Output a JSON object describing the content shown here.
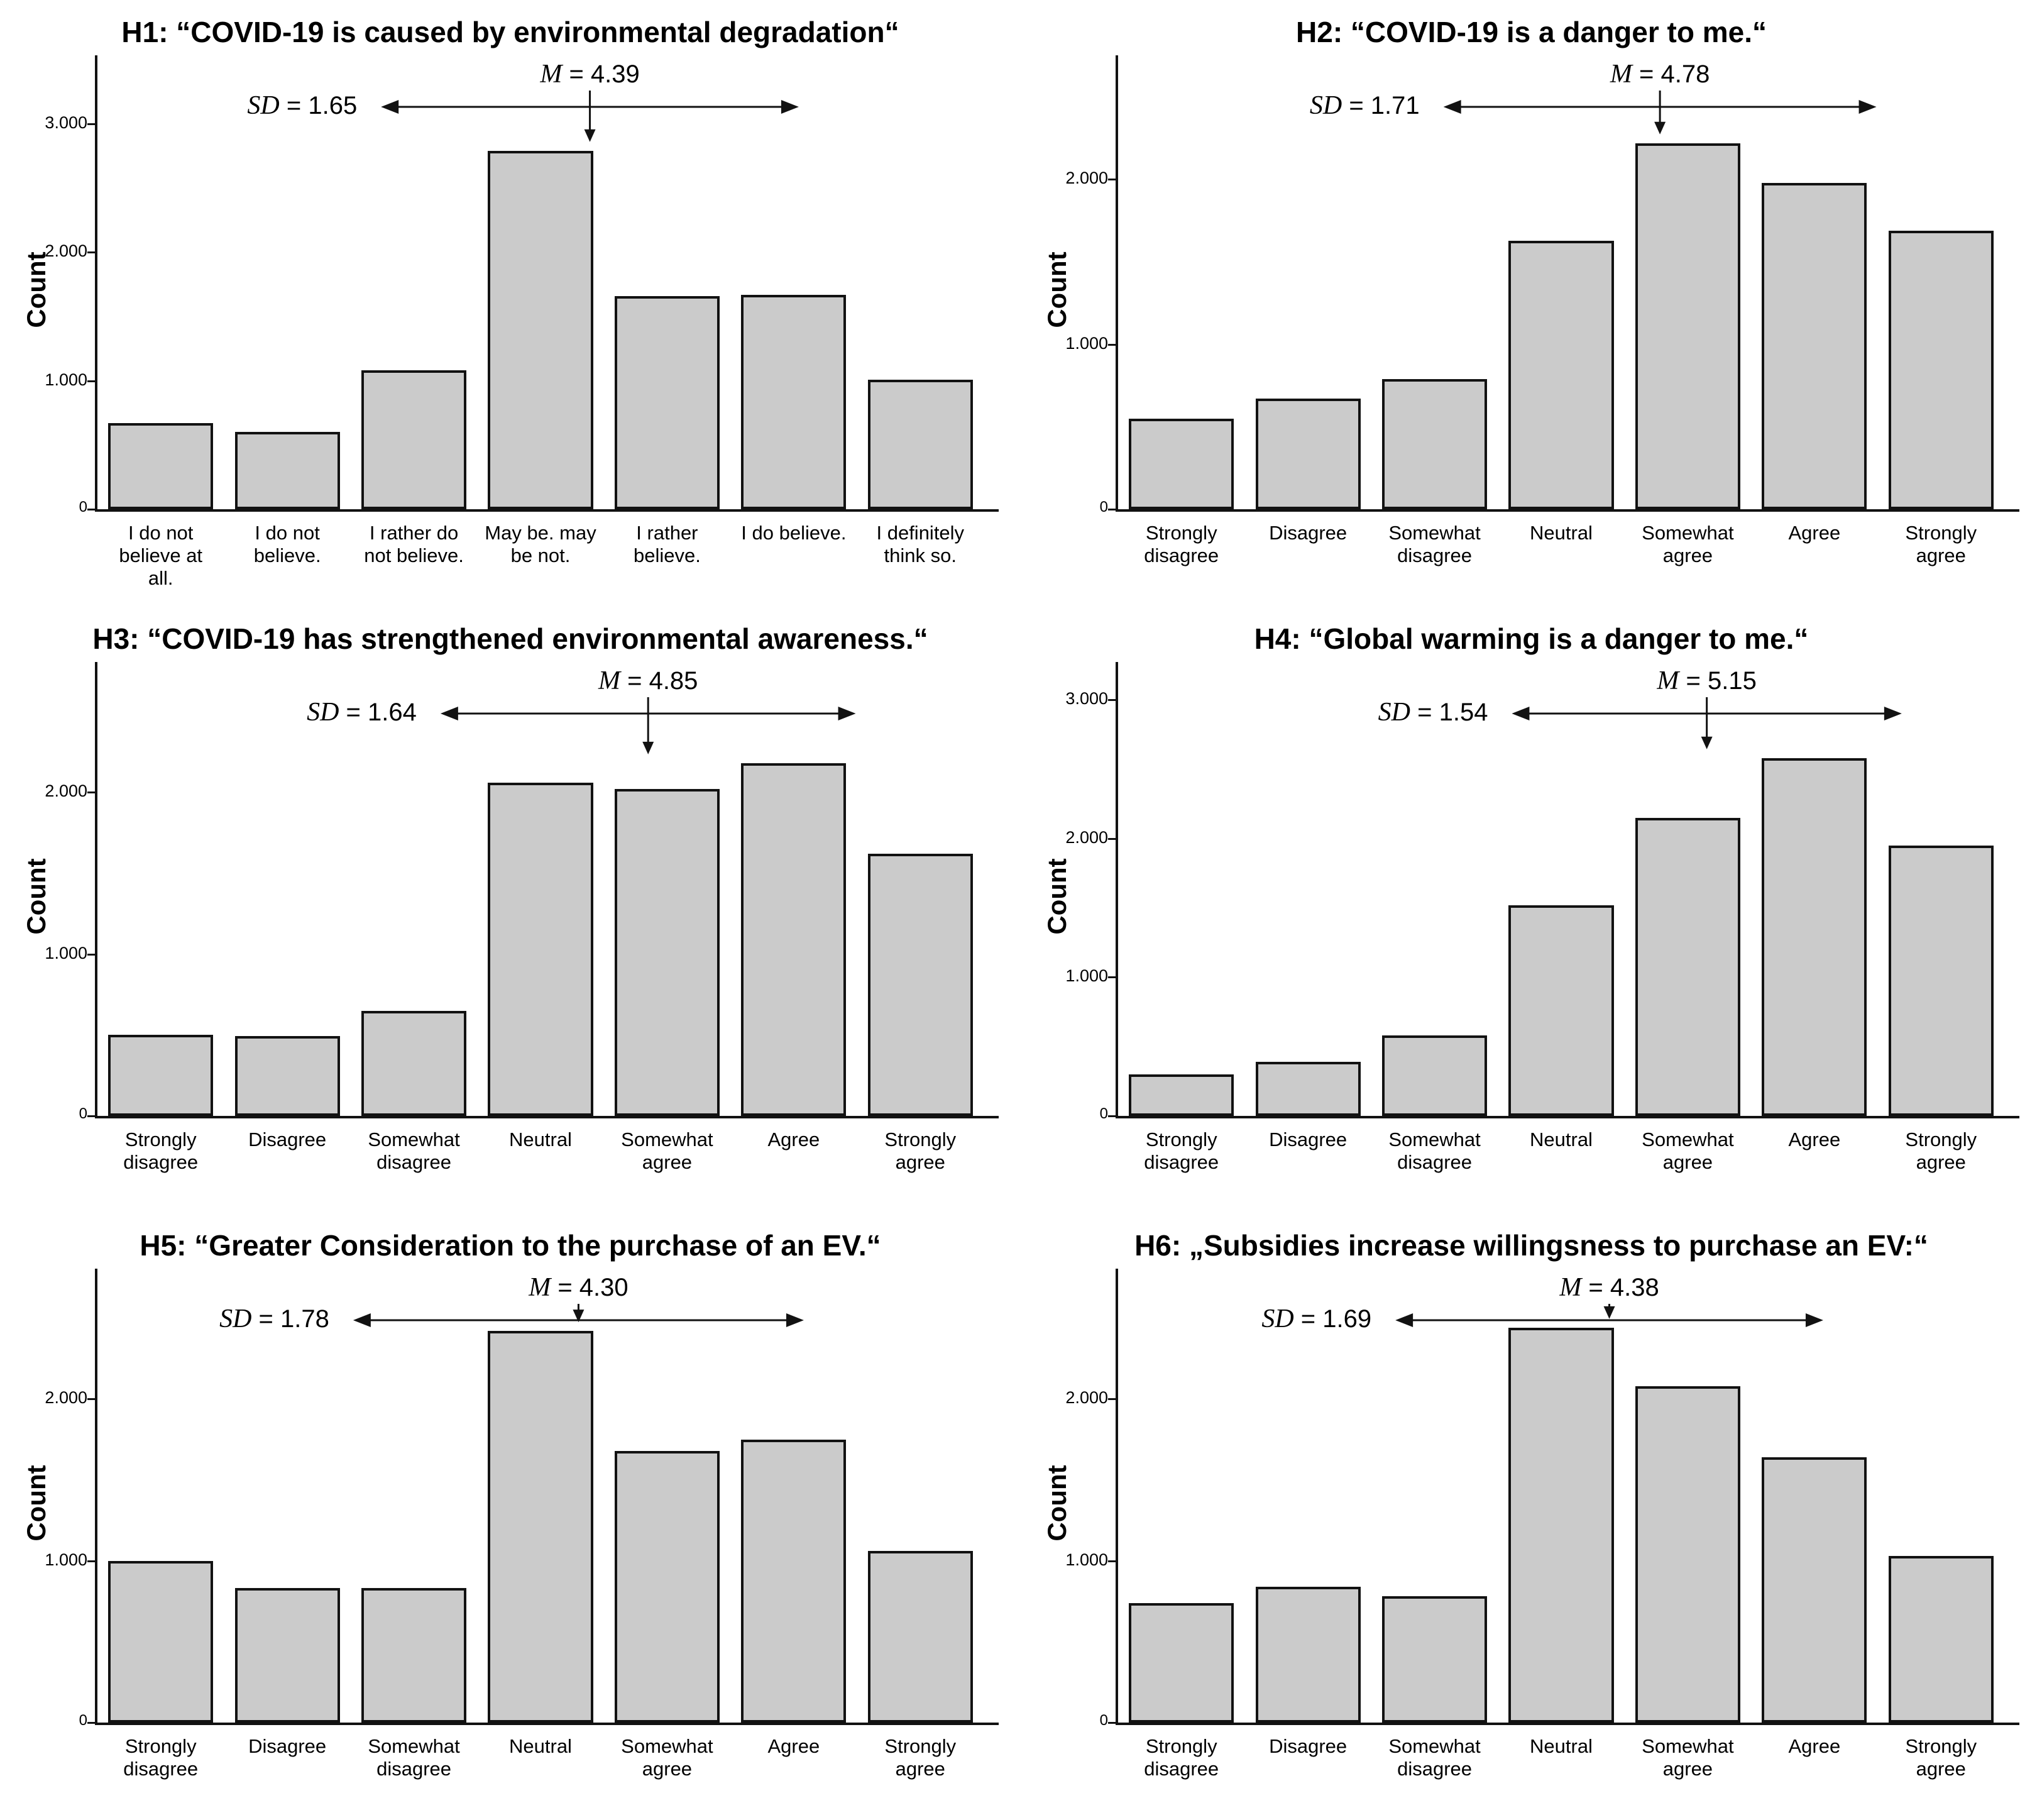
{
  "figure": {
    "ylabel": "Count",
    "colors": {
      "bar_fill": "#cbcbcb",
      "stroke": "#121212",
      "background": "#ffffff"
    }
  },
  "chart_data": [
    {
      "id": "H1",
      "type": "bar",
      "title": "H1: “COVID-19 is caused by environmental degradation“",
      "ylabel": "Count",
      "categories": [
        "I do not\nbelieve at\nall.",
        "I do not\nbelieve.",
        "I rather do\nnot believe.",
        "May be. may\nbe not.",
        "I rather\nbelieve.",
        "I do believe.",
        "I definitely\nthink so."
      ],
      "values": [
        670,
        600,
        1080,
        2790,
        1660,
        1670,
        1010
      ],
      "mean": 4.39,
      "sd": 1.65,
      "mean_label": "M = 4.39",
      "sd_label": "SD = 1.65",
      "ytick_values": [
        0,
        1000,
        2000,
        3000
      ],
      "ytick_labels": [
        "0",
        "1.000",
        "2.000",
        "3.000"
      ],
      "ylim": [
        0,
        3400
      ],
      "legend": "none",
      "grid": "off"
    },
    {
      "id": "H2",
      "type": "bar",
      "title": "H2: “COVID-19 is a danger to me.“",
      "ylabel": "Count",
      "categories": [
        "Strongly\ndisagree",
        "Disagree",
        "Somewhat\ndisagree",
        "Neutral",
        "Somewhat\nagree",
        "Agree",
        "Strongly\nagree"
      ],
      "values": [
        550,
        670,
        790,
        1630,
        2220,
        1980,
        1690
      ],
      "mean": 4.78,
      "sd": 1.71,
      "mean_label": "M = 4.78",
      "sd_label": "SD = 1.71",
      "ytick_values": [
        0,
        1000,
        2000
      ],
      "ytick_labels": [
        "0",
        "1.000",
        "2.000"
      ],
      "ylim": [
        0,
        2650
      ],
      "legend": "none",
      "grid": "off"
    },
    {
      "id": "H3",
      "type": "bar",
      "title": "H3: “COVID-19 has strengthened environmental awareness.“",
      "ylabel": "Count",
      "categories": [
        "Strongly\ndisagree",
        "Disagree",
        "Somewhat\ndisagree",
        "Neutral",
        "Somewhat\nagree",
        "Agree",
        "Strongly\nagree"
      ],
      "values": [
        500,
        495,
        650,
        2060,
        2020,
        2180,
        1620
      ],
      "mean": 4.85,
      "sd": 1.64,
      "mean_label": "M = 4.85",
      "sd_label": "SD = 1.64",
      "ytick_values": [
        0,
        1000,
        2000
      ],
      "ytick_labels": [
        "0",
        "1.000",
        "2.000"
      ],
      "ylim": [
        0,
        2700
      ],
      "legend": "none",
      "grid": "off"
    },
    {
      "id": "H4",
      "type": "bar",
      "title": "H4: “Global warming is a danger to me.“",
      "ylabel": "Count",
      "categories": [
        "Strongly\ndisagree",
        "Disagree",
        "Somewhat\ndisagree",
        "Neutral",
        "Somewhat\nagree",
        "Agree",
        "Strongly\nagree"
      ],
      "values": [
        300,
        390,
        580,
        1520,
        2150,
        2580,
        1950
      ],
      "mean": 5.15,
      "sd": 1.54,
      "mean_label": "M = 5.15",
      "sd_label": "SD = 1.54",
      "ytick_values": [
        0,
        1000,
        2000,
        3000
      ],
      "ytick_labels": [
        "0",
        "1.000",
        "2.000",
        "3.000"
      ],
      "ylim": [
        0,
        3150
      ],
      "legend": "none",
      "grid": "off"
    },
    {
      "id": "H5",
      "type": "bar",
      "title": "H5: “Greater Consideration to the purchase of an EV.“",
      "ylabel": "Count",
      "categories": [
        "Strongly\ndisagree",
        "Disagree",
        "Somewhat\ndisagree",
        "Neutral",
        "Somewhat\nagree",
        "Agree",
        "Strongly\nagree"
      ],
      "values": [
        1000,
        830,
        830,
        2420,
        1680,
        1750,
        1060
      ],
      "mean": 4.3,
      "sd": 1.78,
      "mean_label": "M = 4.30",
      "sd_label": "SD = 1.78",
      "ytick_values": [
        0,
        1000,
        2000
      ],
      "ytick_labels": [
        "0",
        "1.000",
        "2.000"
      ],
      "ylim": [
        0,
        2700
      ],
      "legend": "none",
      "grid": "off"
    },
    {
      "id": "H6",
      "type": "bar",
      "title": "H6: „Subsidies increase willingsness to purchase an EV:“",
      "ylabel": "Count",
      "categories": [
        "Strongly\ndisagree",
        "Disagree",
        "Somewhat\ndisagree",
        "Neutral",
        "Somewhat\nagree",
        "Agree",
        "Strongly\nagree"
      ],
      "values": [
        740,
        840,
        780,
        2440,
        2080,
        1640,
        1030
      ],
      "mean": 4.38,
      "sd": 1.69,
      "mean_label": "M = 4.38",
      "sd_label": "SD = 1.69",
      "ytick_values": [
        0,
        1000,
        2000
      ],
      "ytick_labels": [
        "0",
        "1.000",
        "2.000"
      ],
      "ylim": [
        0,
        2700
      ],
      "legend": "none",
      "grid": "off"
    }
  ]
}
